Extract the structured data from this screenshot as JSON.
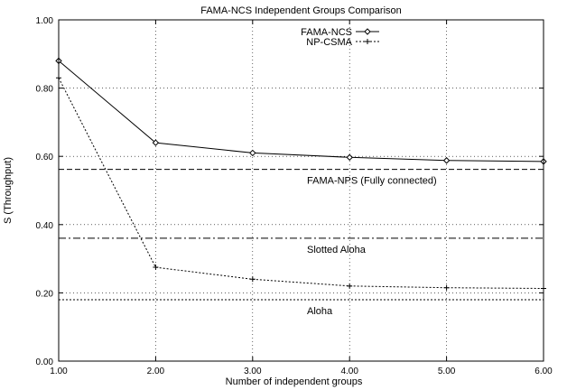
{
  "chart_data": {
    "type": "line",
    "title": "FAMA-NCS Independent Groups Comparison",
    "xlabel": "Number of independent groups",
    "ylabel": "S (Throughput)",
    "xlim": [
      1,
      6
    ],
    "ylim": [
      0,
      1
    ],
    "x_ticks": [
      "1.00",
      "2.00",
      "3.00",
      "4.00",
      "5.00",
      "6.00"
    ],
    "y_ticks": [
      "0.00",
      "0.20",
      "0.40",
      "0.60",
      "0.80",
      "1.00"
    ],
    "grid": true,
    "legend_position": "top-center",
    "series": [
      {
        "name": "FAMA-NCS",
        "x": [
          1,
          2,
          3,
          4,
          5,
          6
        ],
        "values": [
          0.88,
          0.64,
          0.61,
          0.597,
          0.588,
          0.585
        ],
        "marker": "diamond",
        "style": "solid",
        "color": "#000000"
      },
      {
        "name": "NP-CSMA",
        "x": [
          1,
          2,
          3,
          4,
          5,
          6
        ],
        "values": [
          0.83,
          0.275,
          0.24,
          0.22,
          0.215,
          0.213
        ],
        "marker": "plus",
        "style": "dotted",
        "color": "#000000"
      }
    ],
    "reference_lines": [
      {
        "label": "FAMA-NPS (Fully connected)",
        "y": 0.562,
        "style": "dashed"
      },
      {
        "label": "Slotted Aloha",
        "y": 0.36,
        "style": "dashdot"
      },
      {
        "label": "Aloha",
        "y": 0.18,
        "style": "dotted"
      }
    ]
  }
}
